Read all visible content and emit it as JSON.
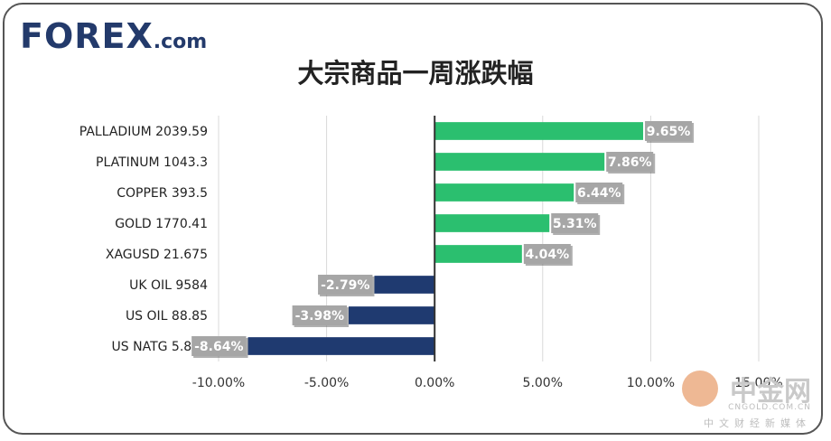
{
  "brand": {
    "logo_main": "FOREX",
    "logo_suffix": ".com"
  },
  "watermark": {
    "main": "中金网",
    "sub": "CNGOLD.COM.CN",
    "sub2": "中文财经新媒体"
  },
  "colors": {
    "positive": "#2bbf6f",
    "negative": "#1f3a70",
    "label_bg": "#a6a6a6",
    "label_text": "#ffffff",
    "axis": "#333333",
    "grid": "#d9d9d9"
  },
  "chart_data": {
    "type": "bar",
    "orientation": "horizontal",
    "title": "大宗商品一周涨跌幅",
    "categories": [
      "PALLADIUM  2039.59",
      "PLATINUM  1043.3",
      "COPPER  393.5",
      "GOLD  1770.41",
      "XAGUSD  21.675",
      "UK OIL  9584",
      "US OIL  88.85",
      "US NATG  5.892"
    ],
    "values": [
      9.65,
      7.86,
      6.44,
      5.31,
      4.04,
      -2.79,
      -3.98,
      -8.64
    ],
    "data_labels": [
      "9.65%",
      "7.86%",
      "6.44%",
      "5.31%",
      "4.04%",
      "-2.79%",
      "-3.98%",
      "-8.64%"
    ],
    "xlim": [
      -10,
      15
    ],
    "x_ticks": [
      -10,
      -5,
      0,
      5,
      10,
      15
    ],
    "x_tick_labels": [
      "-10.00%",
      "-5.00%",
      "0.00%",
      "5.00%",
      "10.00%",
      "15.00%"
    ],
    "grid": true,
    "legend": "none"
  }
}
